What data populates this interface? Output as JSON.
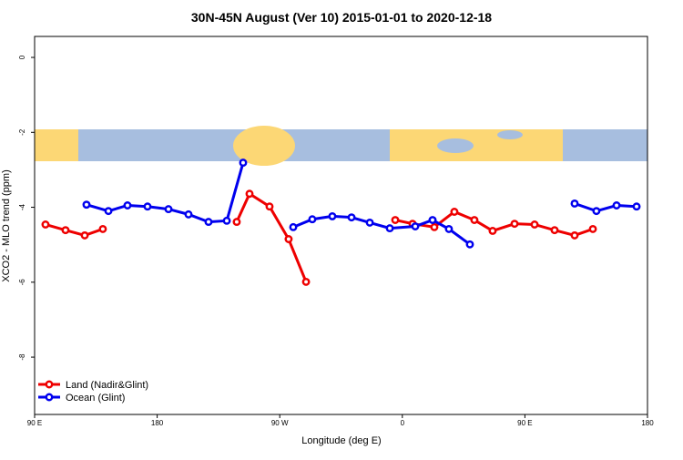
{
  "chart_data": {
    "type": "line",
    "title": "30N-45N August (Ver 10)   2015-01-01 to 2020-12-18",
    "xlabel": "Longitude (deg E)",
    "ylabel": "XCO2 - MLO trend (ppm)",
    "xlim": [
      90,
      540
    ],
    "ylim": [
      -9.53,
      0.56
    ],
    "xticks": [
      {
        "value": 90,
        "label": "90 E"
      },
      180,
      {
        "value": 270,
        "label": "90 W"
      },
      {
        "value": 360,
        "label": "0"
      },
      {
        "value": 450,
        "label": "90 E"
      },
      {
        "value": 540,
        "label": "180"
      }
    ],
    "yticks": [
      0,
      -2,
      -4,
      -6,
      -8
    ],
    "legend": "bottom-left",
    "series": [
      {
        "name": "Land (Nadir&Glint)",
        "color": "#ee0000",
        "x": [
          98,
          112.7,
          126.8,
          140.1,
          null,
          238.4,
          247.8,
          262.5,
          276.5,
          289.3,
          null,
          354.8,
          367.5,
          383.5,
          398.2,
          412.9,
          426.3,
          442.4,
          457.1,
          471.8,
          486.5,
          499.9
        ],
        "values": [
          -4.46,
          -4.61,
          -4.75,
          -4.58,
          null,
          -4.39,
          -3.64,
          -3.98,
          -4.85,
          -5.99,
          null,
          -4.34,
          -4.44,
          -4.53,
          -4.12,
          -4.34,
          -4.63,
          -4.44,
          -4.46,
          -4.61,
          -4.75,
          -4.58
        ]
      },
      {
        "name": "Ocean (Glint)",
        "color": "#0000ee",
        "x": [
          128.1,
          144.2,
          158.2,
          172.9,
          188.3,
          203.0,
          217.7,
          231.1,
          243.1,
          null,
          279.9,
          293.9,
          308.6,
          322.7,
          336.1,
          350.8,
          369.5,
          382.2,
          394.2,
          409.6,
          null,
          486.5,
          502.5,
          517.3,
          532.0
        ],
        "values": [
          -3.93,
          -4.1,
          -3.95,
          -3.98,
          -4.05,
          -4.19,
          -4.39,
          -4.36,
          -2.81,
          null,
          -4.53,
          -4.32,
          -4.24,
          -4.27,
          -4.41,
          -4.56,
          -4.51,
          -4.34,
          -4.58,
          -4.99,
          null,
          -3.9,
          -4.1,
          -3.95,
          -3.98
        ]
      }
    ]
  }
}
